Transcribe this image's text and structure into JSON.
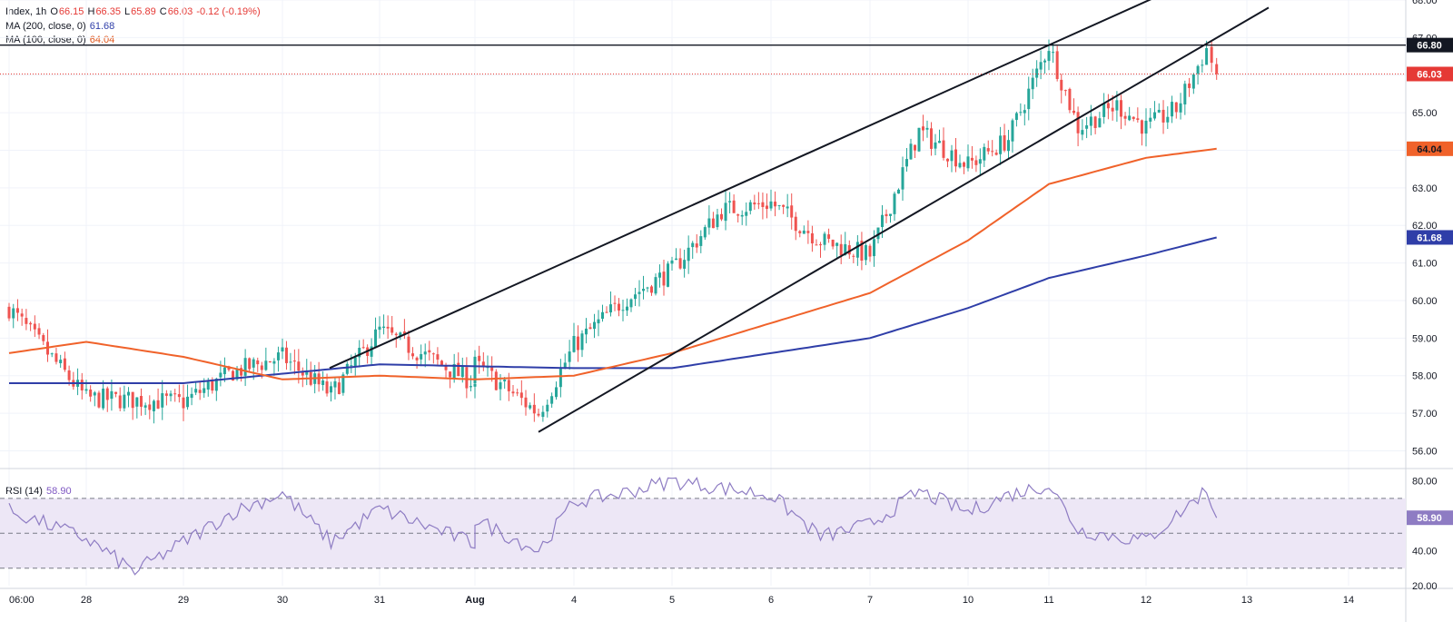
{
  "colors": {
    "up": "#26a69a",
    "down": "#ef5350",
    "ma200": "#2f3ea8",
    "ma100": "#f0622a",
    "rsi": "#8e7cc3",
    "rsi_band": "#ede7f6",
    "last_price": "#e53935"
  },
  "legend": {
    "symbol": "Index, 1h",
    "o_label": "O",
    "o": "66.15",
    "h_label": "H",
    "h": "66.35",
    "l_label": "L",
    "l": "65.89",
    "c_label": "C",
    "c": "66.03",
    "change": "-0.12 (-0.19%)",
    "ma200_label": "MA (200, close, 0)",
    "ma200": "61.68",
    "ma100_label": "MA (100, close, 0)",
    "ma100": "64.04",
    "rsi_label": "RSI (14)",
    "rsi": "58.90"
  },
  "chart_data": {
    "type": "candlestick",
    "y_range": [
      55.6,
      68.0
    ],
    "y_ticks": [
      "56.00",
      "57.00",
      "58.00",
      "59.00",
      "60.00",
      "61.00",
      "62.00",
      "63.00",
      "64.00",
      "65.00",
      "66.00",
      "67.00",
      "68.00"
    ],
    "x_labels": [
      "06:00",
      "28",
      "29",
      "30",
      "31",
      "Aug",
      "4",
      "5",
      "6",
      "7",
      "10",
      "11",
      "12",
      "13",
      "14"
    ],
    "price_tags": [
      {
        "value": "66.80",
        "kind": "resistance"
      },
      {
        "value": "66.03",
        "kind": "last"
      },
      {
        "value": "64.04",
        "kind": "ma100"
      },
      {
        "value": "61.68",
        "kind": "ma200"
      }
    ],
    "horizontal_line": 66.8,
    "channel_upper": [
      [
        "31",
        58.8
      ],
      [
        "11",
        66.8
      ]
    ],
    "channel_lower": [
      [
        "3",
        56.5
      ],
      [
        "12",
        65.9
      ]
    ],
    "path_points": [
      [
        "06:00",
        59.8
      ],
      [
        "28",
        57.4
      ],
      [
        "29",
        57.3
      ],
      [
        "29.5",
        58.1
      ],
      [
        "30",
        58.5
      ],
      [
        "30.5",
        57.5
      ],
      [
        "31",
        59.2
      ],
      [
        "Aug",
        57.8
      ],
      [
        "Aug",
        58.3
      ],
      [
        "3",
        57.0
      ],
      [
        "4",
        58.8
      ],
      [
        "4.5",
        60.0
      ],
      [
        "5",
        60.8
      ],
      [
        "5.5",
        62.4
      ],
      [
        "6",
        62.6
      ],
      [
        "6.5",
        61.6
      ],
      [
        "7",
        61.2
      ],
      [
        "7.5",
        64.5
      ],
      [
        "10",
        63.6
      ],
      [
        "10.5",
        64.3
      ],
      [
        "11",
        66.8
      ],
      [
        "11.3",
        64.6
      ],
      [
        "11.7",
        65.2
      ],
      [
        "12",
        64.6
      ],
      [
        "12.3",
        65.1
      ],
      [
        "12.6",
        66.7
      ],
      [
        "12.7",
        66.03
      ]
    ],
    "ma200": [
      [
        "06:00",
        57.8
      ],
      [
        "29",
        57.8
      ],
      [
        "31",
        58.3
      ],
      [
        "4",
        58.2
      ],
      [
        "5",
        58.2
      ],
      [
        "7",
        59.0
      ],
      [
        "10",
        59.8
      ],
      [
        "11",
        60.6
      ],
      [
        "12",
        61.2
      ],
      [
        "12.7",
        61.68
      ]
    ],
    "ma100": [
      [
        "06:00",
        58.6
      ],
      [
        "28",
        58.9
      ],
      [
        "29",
        58.5
      ],
      [
        "30",
        57.9
      ],
      [
        "31",
        58.0
      ],
      [
        "Aug",
        57.9
      ],
      [
        "4",
        58.0
      ],
      [
        "5",
        58.6
      ],
      [
        "6",
        59.4
      ],
      [
        "7",
        60.2
      ],
      [
        "10",
        61.6
      ],
      [
        "11",
        63.1
      ],
      [
        "12",
        63.8
      ],
      [
        "12.7",
        64.04
      ]
    ],
    "rsi": {
      "levels": [
        70,
        50,
        30
      ],
      "ticks": [
        "20.00",
        "40.00",
        "58.90",
        "80.00"
      ],
      "range": [
        20,
        85
      ],
      "last": 58.9,
      "path_points": [
        [
          "06:00",
          63
        ],
        [
          "28",
          47
        ],
        [
          "28.5",
          28
        ],
        [
          "29",
          45
        ],
        [
          "29.5",
          62
        ],
        [
          "30",
          73
        ],
        [
          "30.5",
          45
        ],
        [
          "31",
          64
        ],
        [
          "Aug",
          44
        ],
        [
          "Aug",
          58
        ],
        [
          "3",
          40
        ],
        [
          "4",
          68
        ],
        [
          "4.5",
          73
        ],
        [
          "5",
          80
        ],
        [
          "6",
          72
        ],
        [
          "6.5",
          48
        ],
        [
          "7",
          55
        ],
        [
          "7.5",
          74
        ],
        [
          "10",
          62
        ],
        [
          "10.5",
          72
        ],
        [
          "11",
          78
        ],
        [
          "11.3",
          52
        ],
        [
          "11.7",
          48
        ],
        [
          "12",
          46
        ],
        [
          "12.3",
          60
        ],
        [
          "12.6",
          75
        ],
        [
          "12.7",
          58.9
        ]
      ]
    }
  }
}
